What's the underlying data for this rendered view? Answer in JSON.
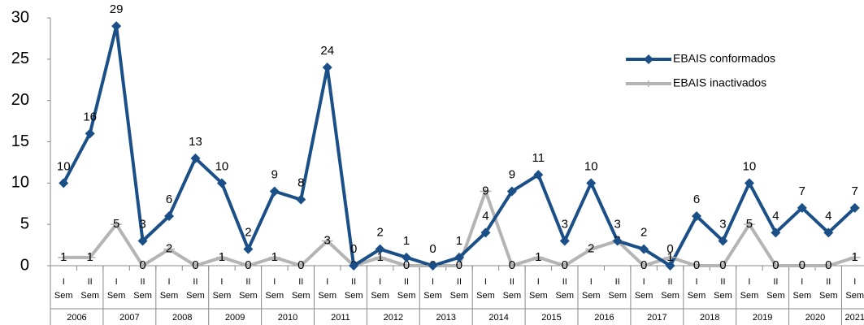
{
  "chart_data": {
    "type": "line",
    "categories": [
      [
        "I",
        "Sem"
      ],
      [
        "II",
        "Sem"
      ],
      [
        "I",
        "Sem"
      ],
      [
        "II",
        "Sem"
      ],
      [
        "I",
        "Sem"
      ],
      [
        "II",
        "Sem"
      ],
      [
        "I",
        "Sem"
      ],
      [
        "II",
        "Sem"
      ],
      [
        "I",
        "Sem"
      ],
      [
        "II",
        "Sem"
      ],
      [
        "I",
        "Sem"
      ],
      [
        "II",
        "Sem"
      ],
      [
        "I",
        "Sem"
      ],
      [
        "II",
        "Sem"
      ],
      [
        "I",
        "Sem"
      ],
      [
        "II",
        "Sem"
      ],
      [
        "I",
        "Sem"
      ],
      [
        "II",
        "Sem"
      ],
      [
        "I",
        "Sem"
      ],
      [
        "II",
        "Sem"
      ],
      [
        "I",
        "Sem"
      ],
      [
        "II",
        "Sem"
      ],
      [
        "I",
        "Sem"
      ],
      [
        "II",
        "Sem"
      ],
      [
        "I",
        "Sem"
      ],
      [
        "II",
        "Sem"
      ],
      [
        "I",
        "Sem"
      ],
      [
        "II",
        "Sem"
      ],
      [
        "I",
        "Sem"
      ],
      [
        "II",
        "Sem"
      ],
      [
        "I",
        "Sem"
      ]
    ],
    "groups": [
      {
        "label": "2006",
        "span": 2
      },
      {
        "label": "2007",
        "span": 2
      },
      {
        "label": "2008",
        "span": 2
      },
      {
        "label": "2009",
        "span": 2
      },
      {
        "label": "2010",
        "span": 2
      },
      {
        "label": "2011",
        "span": 2
      },
      {
        "label": "2012",
        "span": 2
      },
      {
        "label": "2013",
        "span": 2
      },
      {
        "label": "2014",
        "span": 2
      },
      {
        "label": "2015",
        "span": 2
      },
      {
        "label": "2016",
        "span": 2
      },
      {
        "label": "2017",
        "span": 2
      },
      {
        "label": "2018",
        "span": 2
      },
      {
        "label": "2019",
        "span": 2
      },
      {
        "label": "2020",
        "span": 2
      },
      {
        "label": "2021",
        "span": 1
      }
    ],
    "series": [
      {
        "name": "EBAIS conformados",
        "color": "#1b4f87",
        "marker": "diamond",
        "values": [
          10,
          16,
          29,
          3,
          6,
          13,
          10,
          2,
          9,
          8,
          24,
          0,
          2,
          1,
          0,
          1,
          4,
          9,
          11,
          3,
          10,
          3,
          2,
          0,
          6,
          3,
          10,
          4,
          7,
          4,
          7
        ]
      },
      {
        "name": "EBAIS inactivados",
        "color": "#b4b4b4",
        "marker": "plus",
        "values": [
          1,
          1,
          5,
          0,
          2,
          0,
          1,
          0,
          1,
          0,
          3,
          0,
          1,
          0,
          0,
          0,
          9,
          0,
          1,
          0,
          2,
          3,
          0,
          1,
          0,
          0,
          5,
          0,
          0,
          0,
          1
        ]
      }
    ],
    "ylim": [
      0,
      30
    ],
    "yticks": [
      0,
      5,
      10,
      15,
      20,
      25,
      30
    ],
    "grid": false,
    "legend": "top-right"
  }
}
